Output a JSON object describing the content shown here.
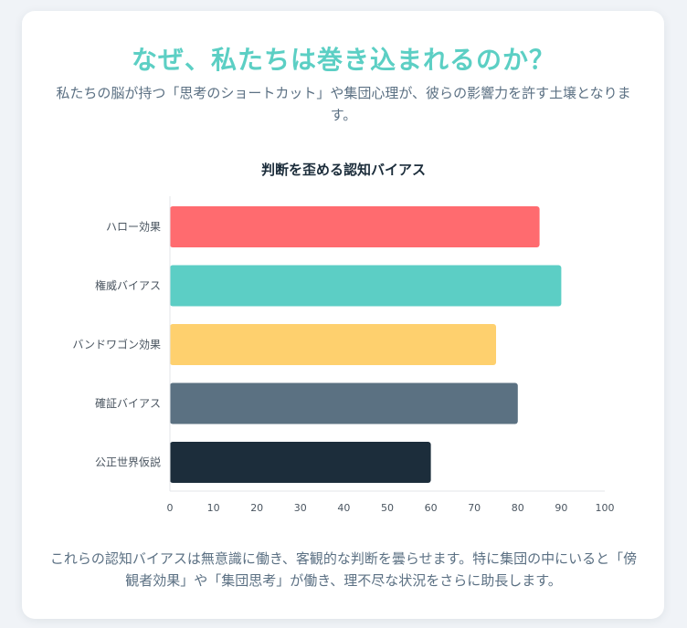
{
  "header": {
    "title": "なぜ、私たちは巻き込まれるのか？",
    "subtitle": "私たちの脳が持つ「思考のショートカット」や集団心理が、彼らの影響力を許す土壌となります。"
  },
  "chart_data": {
    "type": "bar",
    "orientation": "horizontal",
    "title": "判断を歪める認知バイアス",
    "categories": [
      "ハロー効果",
      "権威バイアス",
      "バンドワゴン効果",
      "確証バイアス",
      "公正世界仮説"
    ],
    "values": [
      85,
      90,
      75,
      80,
      60
    ],
    "colors": [
      "#ff6b6f",
      "#5ccec5",
      "#fed06e",
      "#5b7182",
      "#1c2d3b"
    ],
    "xlim": [
      0,
      100
    ],
    "xticks": [
      0,
      10,
      20,
      30,
      40,
      50,
      60,
      70,
      80,
      90,
      100
    ],
    "grid": false,
    "legend": "none"
  },
  "footer": {
    "text": "これらの認知バイアスは無意識に働き、客観的な判断を曇らせます。特に集団の中にいると「傍観者効果」や「集団思考」が働き、理不尽な状況をさらに助長します。"
  }
}
